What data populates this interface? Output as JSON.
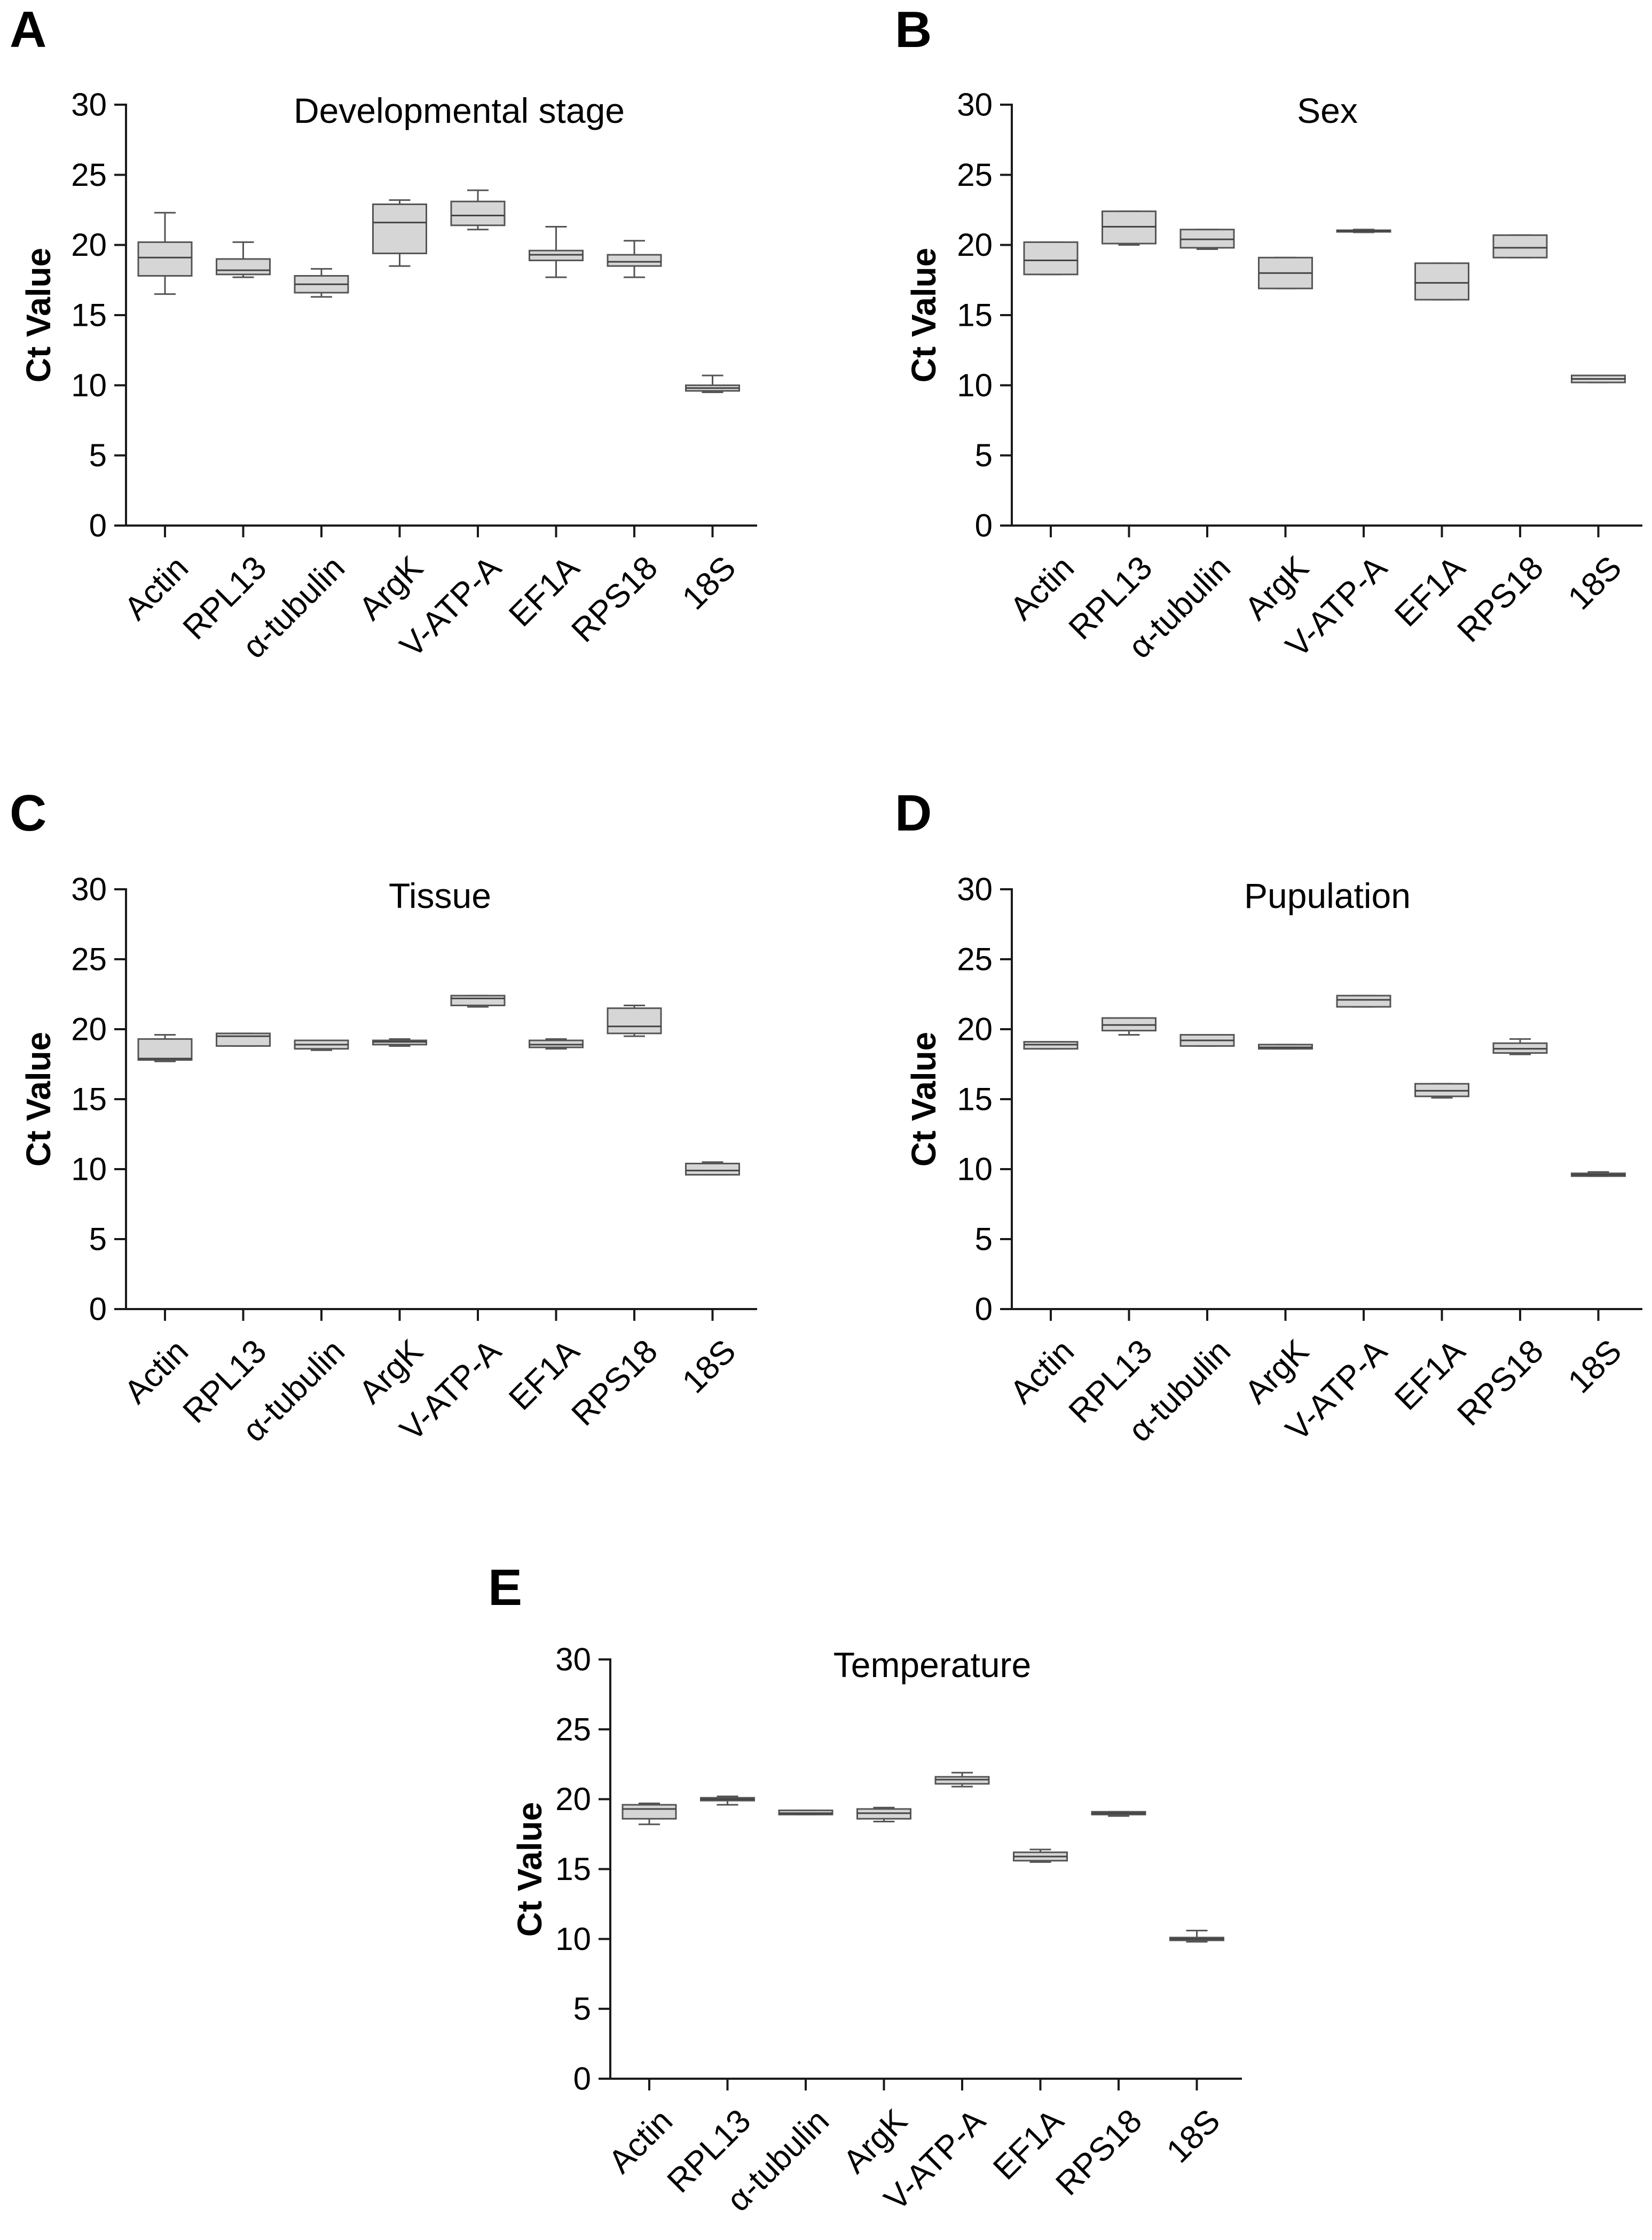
{
  "chart_data": [
    {
      "panel": "A",
      "type": "box",
      "title": "Developmental stage",
      "xlabel": "",
      "ylabel": "Ct Value",
      "ylim": [
        0,
        30
      ],
      "yticks": [
        0,
        5,
        10,
        15,
        20,
        25,
        30
      ],
      "categories": [
        "Actin",
        "RPL13",
        "α-tubulin",
        "ArgK",
        "V-ATP-A",
        "EF1A",
        "RPS18",
        "18S"
      ],
      "boxes": [
        {
          "min": 16.5,
          "q1": 17.8,
          "median": 19.1,
          "q3": 20.2,
          "max": 22.3
        },
        {
          "min": 17.7,
          "q1": 17.9,
          "median": 18.2,
          "q3": 19.0,
          "max": 20.2
        },
        {
          "min": 16.3,
          "q1": 16.6,
          "median": 17.2,
          "q3": 17.8,
          "max": 18.3
        },
        {
          "min": 18.5,
          "q1": 19.4,
          "median": 21.6,
          "q3": 22.9,
          "max": 23.2
        },
        {
          "min": 21.1,
          "q1": 21.4,
          "median": 22.1,
          "q3": 23.1,
          "max": 23.9
        },
        {
          "min": 17.7,
          "q1": 18.9,
          "median": 19.3,
          "q3": 19.6,
          "max": 21.3
        },
        {
          "min": 17.7,
          "q1": 18.5,
          "median": 18.8,
          "q3": 19.3,
          "max": 20.3
        },
        {
          "min": 9.5,
          "q1": 9.6,
          "median": 9.8,
          "q3": 10.0,
          "max": 10.7
        }
      ]
    },
    {
      "panel": "B",
      "type": "box",
      "title": "Sex",
      "xlabel": "",
      "ylabel": "Ct Value",
      "ylim": [
        0,
        30
      ],
      "yticks": [
        0,
        5,
        10,
        15,
        20,
        25,
        30
      ],
      "categories": [
        "Actin",
        "RPL13",
        "α-tubulin",
        "ArgK",
        "V-ATP-A",
        "EF1A",
        "RPS18",
        "18S"
      ],
      "boxes": [
        {
          "min": 17.9,
          "q1": 17.9,
          "median": 18.9,
          "q3": 20.2,
          "max": 20.2
        },
        {
          "min": 20.0,
          "q1": 20.1,
          "median": 21.3,
          "q3": 22.4,
          "max": 22.4
        },
        {
          "min": 19.7,
          "q1": 19.8,
          "median": 20.4,
          "q3": 21.1,
          "max": 21.1
        },
        {
          "min": 16.9,
          "q1": 16.9,
          "median": 18.0,
          "q3": 19.1,
          "max": 19.1
        },
        {
          "min": 20.9,
          "q1": 20.95,
          "median": 21.0,
          "q3": 21.05,
          "max": 21.1
        },
        {
          "min": 16.1,
          "q1": 16.1,
          "median": 17.3,
          "q3": 18.7,
          "max": 18.7
        },
        {
          "min": 19.1,
          "q1": 19.1,
          "median": 19.8,
          "q3": 20.7,
          "max": 20.7
        },
        {
          "min": 10.2,
          "q1": 10.2,
          "median": 10.45,
          "q3": 10.7,
          "max": 10.7
        }
      ]
    },
    {
      "panel": "C",
      "type": "box",
      "title": "Tissue",
      "xlabel": "",
      "ylabel": "Ct Value",
      "ylim": [
        0,
        30
      ],
      "yticks": [
        0,
        5,
        10,
        15,
        20,
        25,
        30
      ],
      "categories": [
        "Actin",
        "RPL13",
        "α-tubulin",
        "ArgK",
        "V-ATP-A",
        "EF1A",
        "RPS18",
        "18S"
      ],
      "boxes": [
        {
          "min": 17.7,
          "q1": 17.8,
          "median": 17.9,
          "q3": 19.3,
          "max": 19.6
        },
        {
          "min": 18.8,
          "q1": 18.8,
          "median": 19.5,
          "q3": 19.7,
          "max": 19.7
        },
        {
          "min": 18.5,
          "q1": 18.6,
          "median": 18.9,
          "q3": 19.2,
          "max": 19.2
        },
        {
          "min": 18.8,
          "q1": 18.9,
          "median": 19.1,
          "q3": 19.2,
          "max": 19.3
        },
        {
          "min": 21.6,
          "q1": 21.7,
          "median": 22.2,
          "q3": 22.4,
          "max": 22.4
        },
        {
          "min": 18.6,
          "q1": 18.7,
          "median": 18.9,
          "q3": 19.2,
          "max": 19.3
        },
        {
          "min": 19.5,
          "q1": 19.7,
          "median": 20.2,
          "q3": 21.5,
          "max": 21.7
        },
        {
          "min": 9.6,
          "q1": 9.6,
          "median": 9.9,
          "q3": 10.4,
          "max": 10.5
        }
      ]
    },
    {
      "panel": "D",
      "type": "box",
      "title": "Pupulation",
      "xlabel": "",
      "ylabel": "Ct Value",
      "ylim": [
        0,
        30
      ],
      "yticks": [
        0,
        5,
        10,
        15,
        20,
        25,
        30
      ],
      "categories": [
        "Actin",
        "RPL13",
        "α-tubulin",
        "ArgK",
        "V-ATP-A",
        "EF1A",
        "RPS18",
        "18S"
      ],
      "boxes": [
        {
          "min": 18.6,
          "q1": 18.6,
          "median": 18.9,
          "q3": 19.1,
          "max": 19.1
        },
        {
          "min": 19.6,
          "q1": 19.9,
          "median": 20.3,
          "q3": 20.8,
          "max": 20.8
        },
        {
          "min": 18.8,
          "q1": 18.8,
          "median": 19.2,
          "q3": 19.6,
          "max": 19.6
        },
        {
          "min": 18.6,
          "q1": 18.6,
          "median": 18.7,
          "q3": 18.9,
          "max": 18.9
        },
        {
          "min": 21.6,
          "q1": 21.6,
          "median": 22.1,
          "q3": 22.4,
          "max": 22.4
        },
        {
          "min": 15.1,
          "q1": 15.2,
          "median": 15.6,
          "q3": 16.1,
          "max": 16.1
        },
        {
          "min": 18.2,
          "q1": 18.3,
          "median": 18.6,
          "q3": 19.0,
          "max": 19.3
        },
        {
          "min": 9.5,
          "q1": 9.5,
          "median": 9.6,
          "q3": 9.7,
          "max": 9.8
        }
      ]
    },
    {
      "panel": "E",
      "type": "box",
      "title": "Temperature",
      "xlabel": "",
      "ylabel": "Ct Value",
      "ylim": [
        0,
        30
      ],
      "yticks": [
        0,
        5,
        10,
        15,
        20,
        25,
        30
      ],
      "categories": [
        "Actin",
        "RPL13",
        "α-tubulin",
        "ArgK",
        "V-ATP-A",
        "EF1A",
        "RPS18",
        "18S"
      ],
      "boxes": [
        {
          "min": 18.2,
          "q1": 18.6,
          "median": 19.3,
          "q3": 19.6,
          "max": 19.7
        },
        {
          "min": 19.6,
          "q1": 19.9,
          "median": 20.0,
          "q3": 20.1,
          "max": 20.2
        },
        {
          "min": 18.9,
          "q1": 18.9,
          "median": 19.0,
          "q3": 19.2,
          "max": 19.2
        },
        {
          "min": 18.4,
          "q1": 18.6,
          "median": 19.0,
          "q3": 19.3,
          "max": 19.4
        },
        {
          "min": 20.9,
          "q1": 21.1,
          "median": 21.4,
          "q3": 21.6,
          "max": 21.9
        },
        {
          "min": 15.5,
          "q1": 15.6,
          "median": 15.9,
          "q3": 16.2,
          "max": 16.4
        },
        {
          "min": 18.8,
          "q1": 18.9,
          "median": 19.0,
          "q3": 19.1,
          "max": 19.1
        },
        {
          "min": 9.8,
          "q1": 9.9,
          "median": 10.0,
          "q3": 10.1,
          "max": 10.6
        }
      ]
    }
  ]
}
